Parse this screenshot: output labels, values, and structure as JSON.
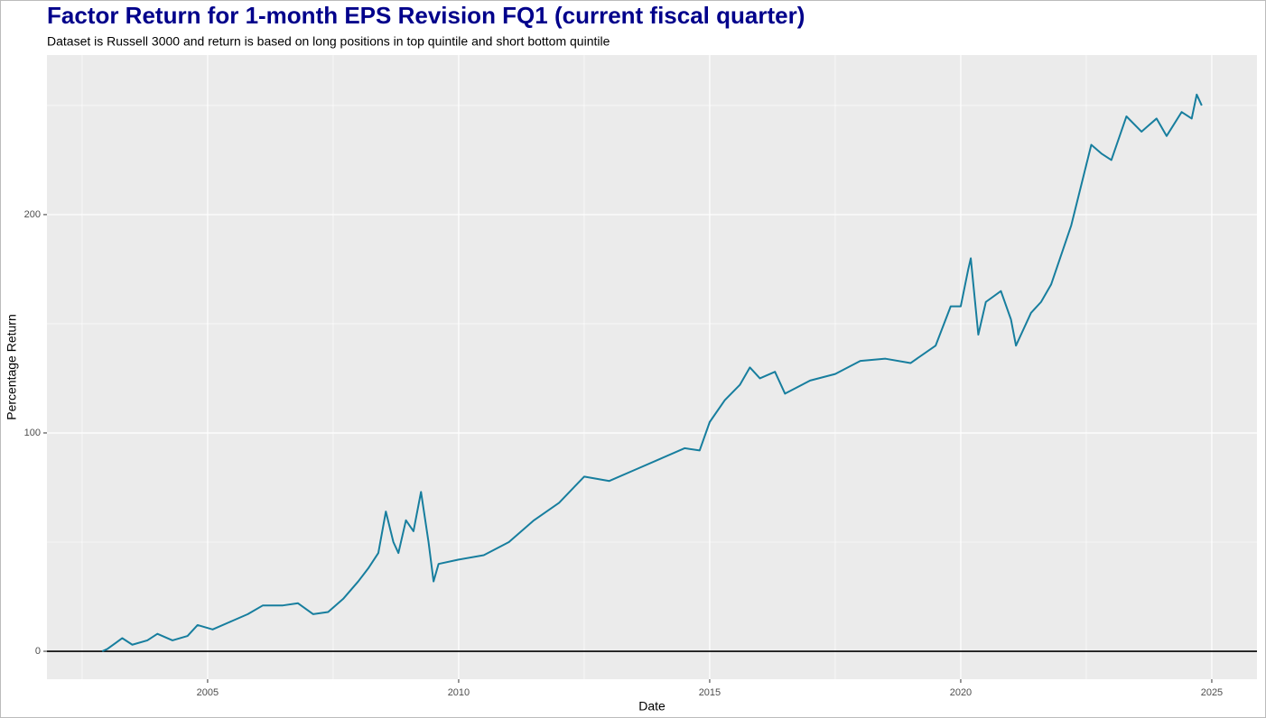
{
  "chart_data": {
    "type": "line",
    "title": "Factor Return for 1-month EPS Revision FQ1 (current fiscal quarter)",
    "subtitle": "Dataset is Russell 3000 and return is based on long positions in top quintile and short bottom quintile",
    "x_label": "Date",
    "y_label": "Percentage Return",
    "x": [
      2002.9,
      2003.0,
      2003.3,
      2003.5,
      2003.8,
      2004.0,
      2004.3,
      2004.6,
      2004.8,
      2005.1,
      2005.5,
      2005.8,
      2006.1,
      2006.5,
      2006.8,
      2007.1,
      2007.4,
      2007.7,
      2008.0,
      2008.2,
      2008.4,
      2008.55,
      2008.7,
      2008.8,
      2008.95,
      2009.1,
      2009.25,
      2009.4,
      2009.5,
      2009.6,
      2010.0,
      2010.5,
      2011.0,
      2011.5,
      2012.0,
      2012.5,
      2013.0,
      2013.5,
      2014.0,
      2014.5,
      2014.8,
      2015.0,
      2015.3,
      2015.6,
      2015.8,
      2016.0,
      2016.3,
      2016.5,
      2017.0,
      2017.5,
      2018.0,
      2018.5,
      2019.0,
      2019.5,
      2019.8,
      2020.0,
      2020.15,
      2020.2,
      2020.35,
      2020.5,
      2020.8,
      2021.0,
      2021.1,
      2021.4,
      2021.6,
      2021.8,
      2022.2,
      2022.6,
      2022.8,
      2023.0,
      2023.3,
      2023.6,
      2023.9,
      2024.1,
      2024.4,
      2024.6,
      2024.7,
      2024.8
    ],
    "series": [
      {
        "name": "Percentage Return",
        "color": "#177e9e",
        "values": [
          0,
          1,
          6,
          3,
          5,
          8,
          5,
          7,
          12,
          10,
          14,
          17,
          21,
          21,
          22,
          17,
          18,
          24,
          32,
          38,
          45,
          64,
          50,
          45,
          60,
          55,
          73,
          50,
          32,
          40,
          42,
          44,
          50,
          60,
          68,
          80,
          78,
          83,
          88,
          93,
          92,
          105,
          115,
          122,
          130,
          125,
          128,
          118,
          124,
          127,
          133,
          134,
          132,
          140,
          158,
          158,
          175,
          180,
          145,
          160,
          165,
          152,
          140,
          155,
          160,
          168,
          195,
          232,
          228,
          225,
          245,
          238,
          244,
          236,
          247,
          244,
          255,
          250
        ]
      }
    ],
    "xlim": [
      2001.8,
      2025.9
    ],
    "xticks": [
      2005,
      2010,
      2015,
      2020,
      2025
    ],
    "ylim": [
      -12.8,
      273.1
    ],
    "yticks": [
      0,
      100,
      200
    ],
    "grid": true,
    "reference_line": 0
  }
}
